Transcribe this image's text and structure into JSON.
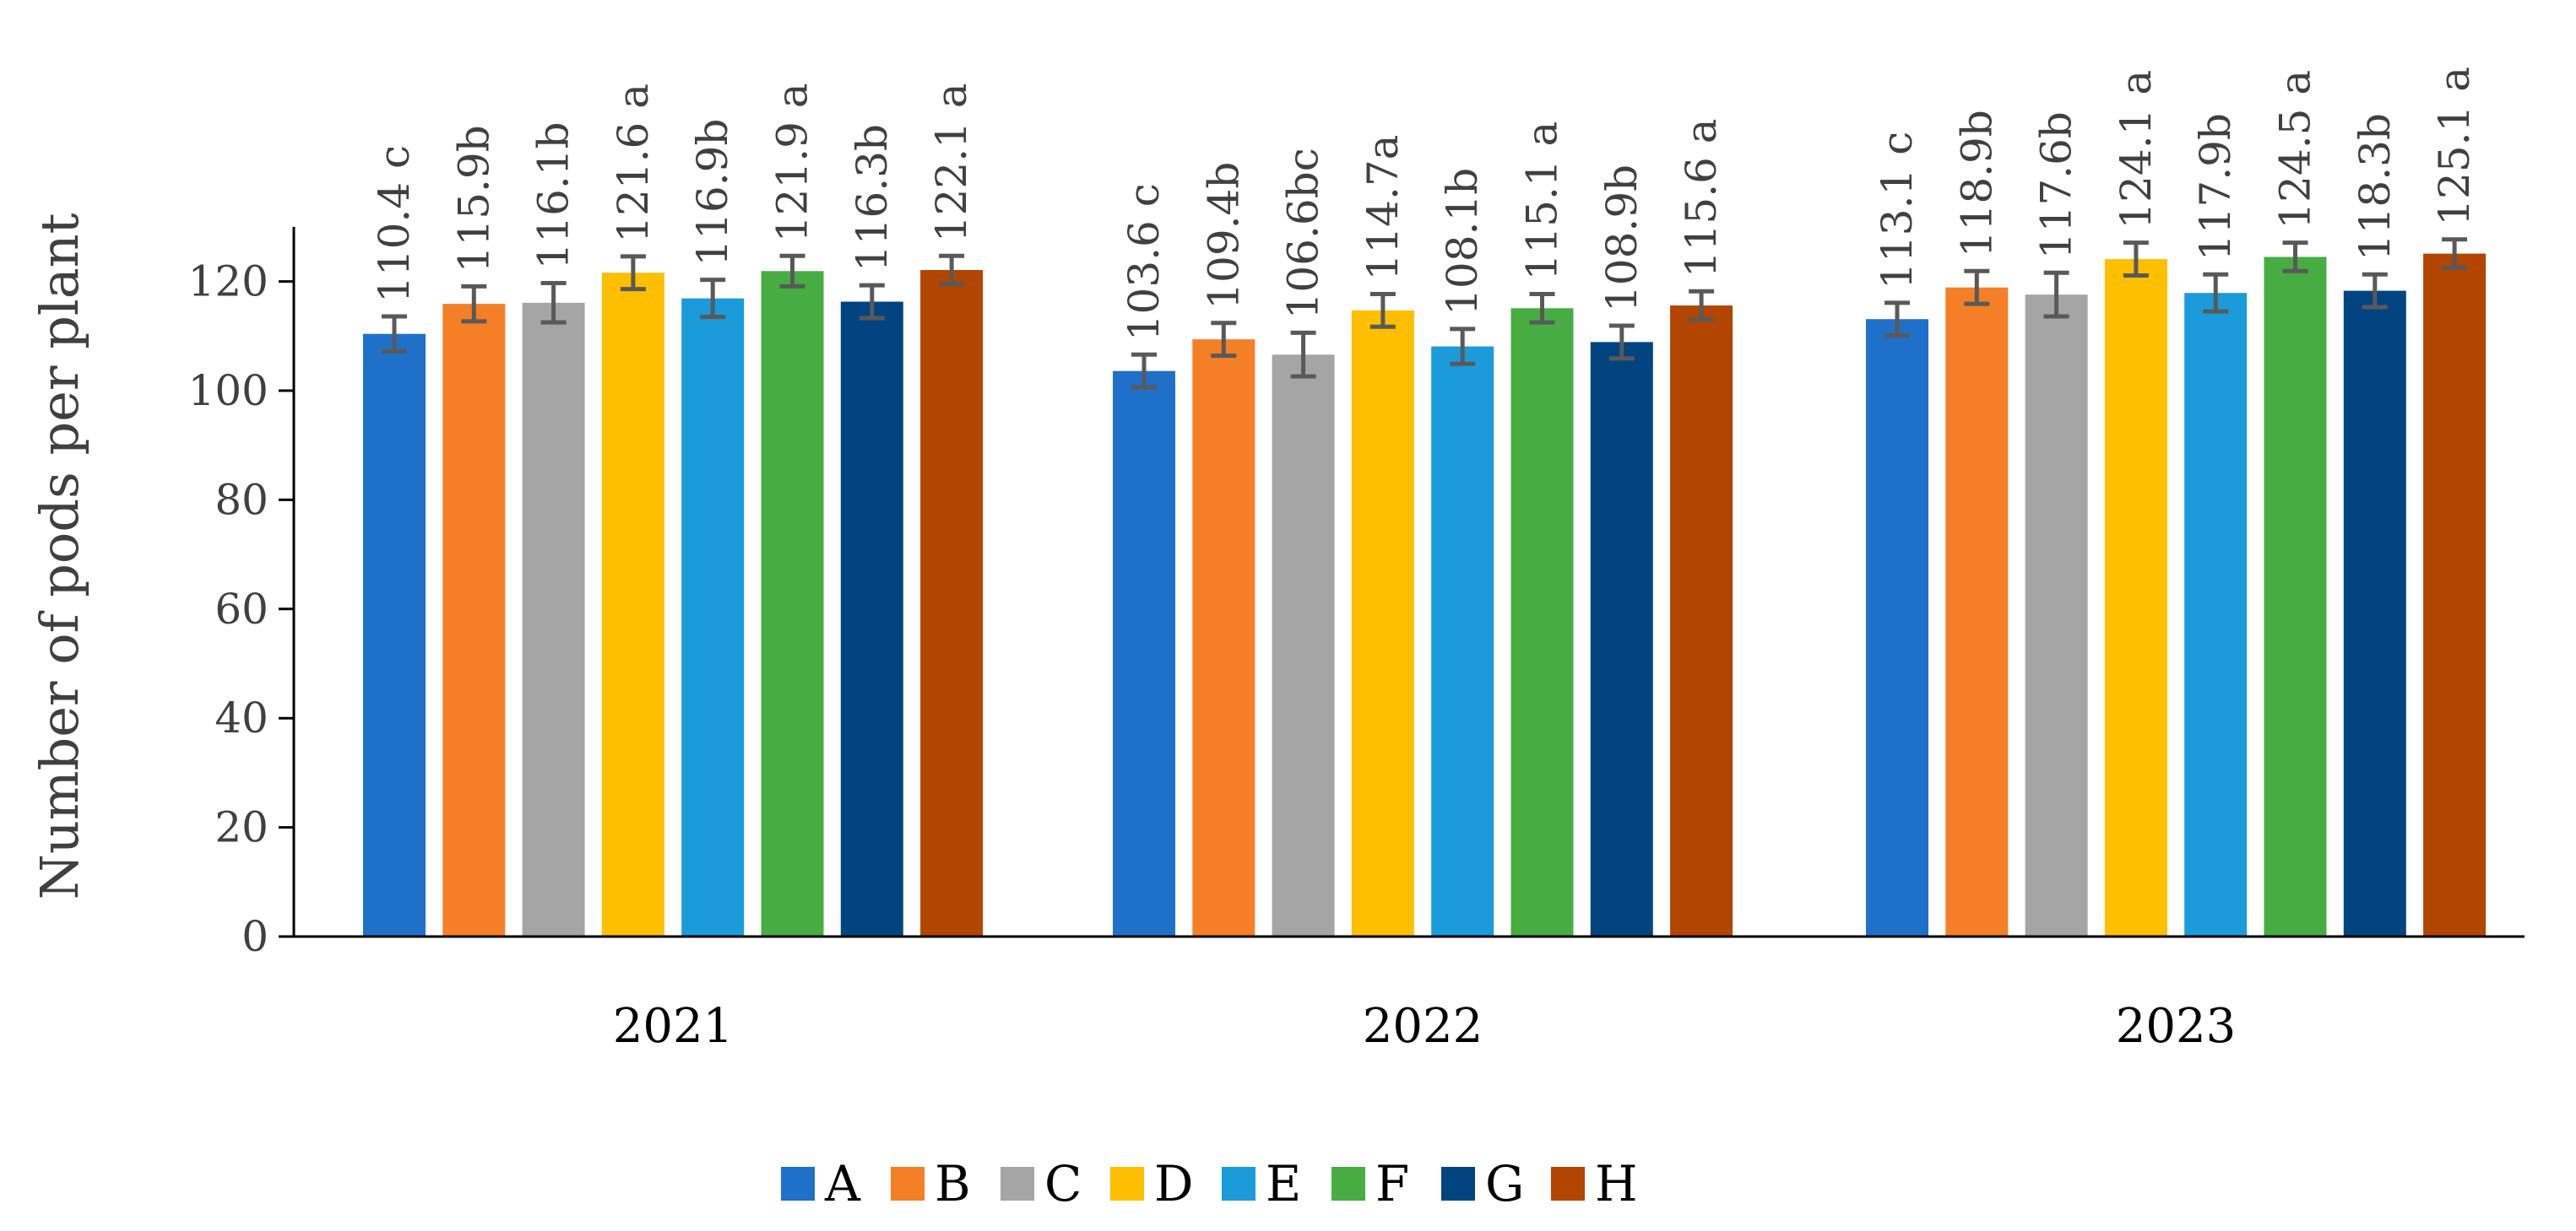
{
  "chart_data": {
    "type": "bar",
    "title": "",
    "xlabel": "",
    "ylabel": "Number of pods per plant",
    "ylim": [
      0,
      130
    ],
    "yticks": [
      0,
      20,
      40,
      60,
      80,
      100,
      120
    ],
    "grid": false,
    "legend_position": "bottom",
    "categories": [
      "2021",
      "2022",
      "2023"
    ],
    "series": [
      {
        "name": "A",
        "color": "#1F70C8",
        "values": [
          110.4,
          103.6,
          113.1
        ],
        "errors": [
          3.2,
          3.0,
          3.0
        ],
        "labels": [
          "110.4 c",
          "103.6 c",
          "113.1 c"
        ]
      },
      {
        "name": "B",
        "color": "#F47F26",
        "values": [
          115.9,
          109.4,
          118.9
        ],
        "errors": [
          3.2,
          3.0,
          3.0
        ],
        "labels": [
          "115.9b",
          "109.4b",
          "118.9b"
        ]
      },
      {
        "name": "C",
        "color": "#A5A5A5",
        "values": [
          116.1,
          106.6,
          117.6
        ],
        "errors": [
          3.6,
          4.0,
          4.0
        ],
        "labels": [
          "116.1b",
          "106.6bc",
          "117.6b"
        ]
      },
      {
        "name": "D",
        "color": "#FDBF00",
        "values": [
          121.6,
          114.7,
          124.1
        ],
        "errors": [
          3.0,
          3.0,
          3.0
        ],
        "labels": [
          "121.6 a",
          "114.7a",
          "124.1 a"
        ]
      },
      {
        "name": "E",
        "color": "#1B9BDA",
        "values": [
          116.9,
          108.1,
          117.9
        ],
        "errors": [
          3.4,
          3.2,
          3.4
        ],
        "labels": [
          "116.9b",
          "108.1b",
          "117.9b"
        ]
      },
      {
        "name": "F",
        "color": "#47AD42",
        "values": [
          121.9,
          115.1,
          124.5
        ],
        "errors": [
          2.8,
          2.6,
          2.6
        ],
        "labels": [
          "121.9 a",
          "115.1 a",
          "124.5 a"
        ]
      },
      {
        "name": "G",
        "color": "#024480",
        "values": [
          116.3,
          108.9,
          118.3
        ],
        "errors": [
          3.0,
          3.0,
          3.0
        ],
        "labels": [
          "116.3b",
          "108.9b",
          "118.3b"
        ]
      },
      {
        "name": "H",
        "color": "#B24500",
        "values": [
          122.1,
          115.6,
          125.1
        ],
        "errors": [
          2.6,
          2.6,
          2.6
        ],
        "labels": [
          "122.1 a",
          "115.6 a",
          "125.1 a"
        ]
      }
    ]
  }
}
